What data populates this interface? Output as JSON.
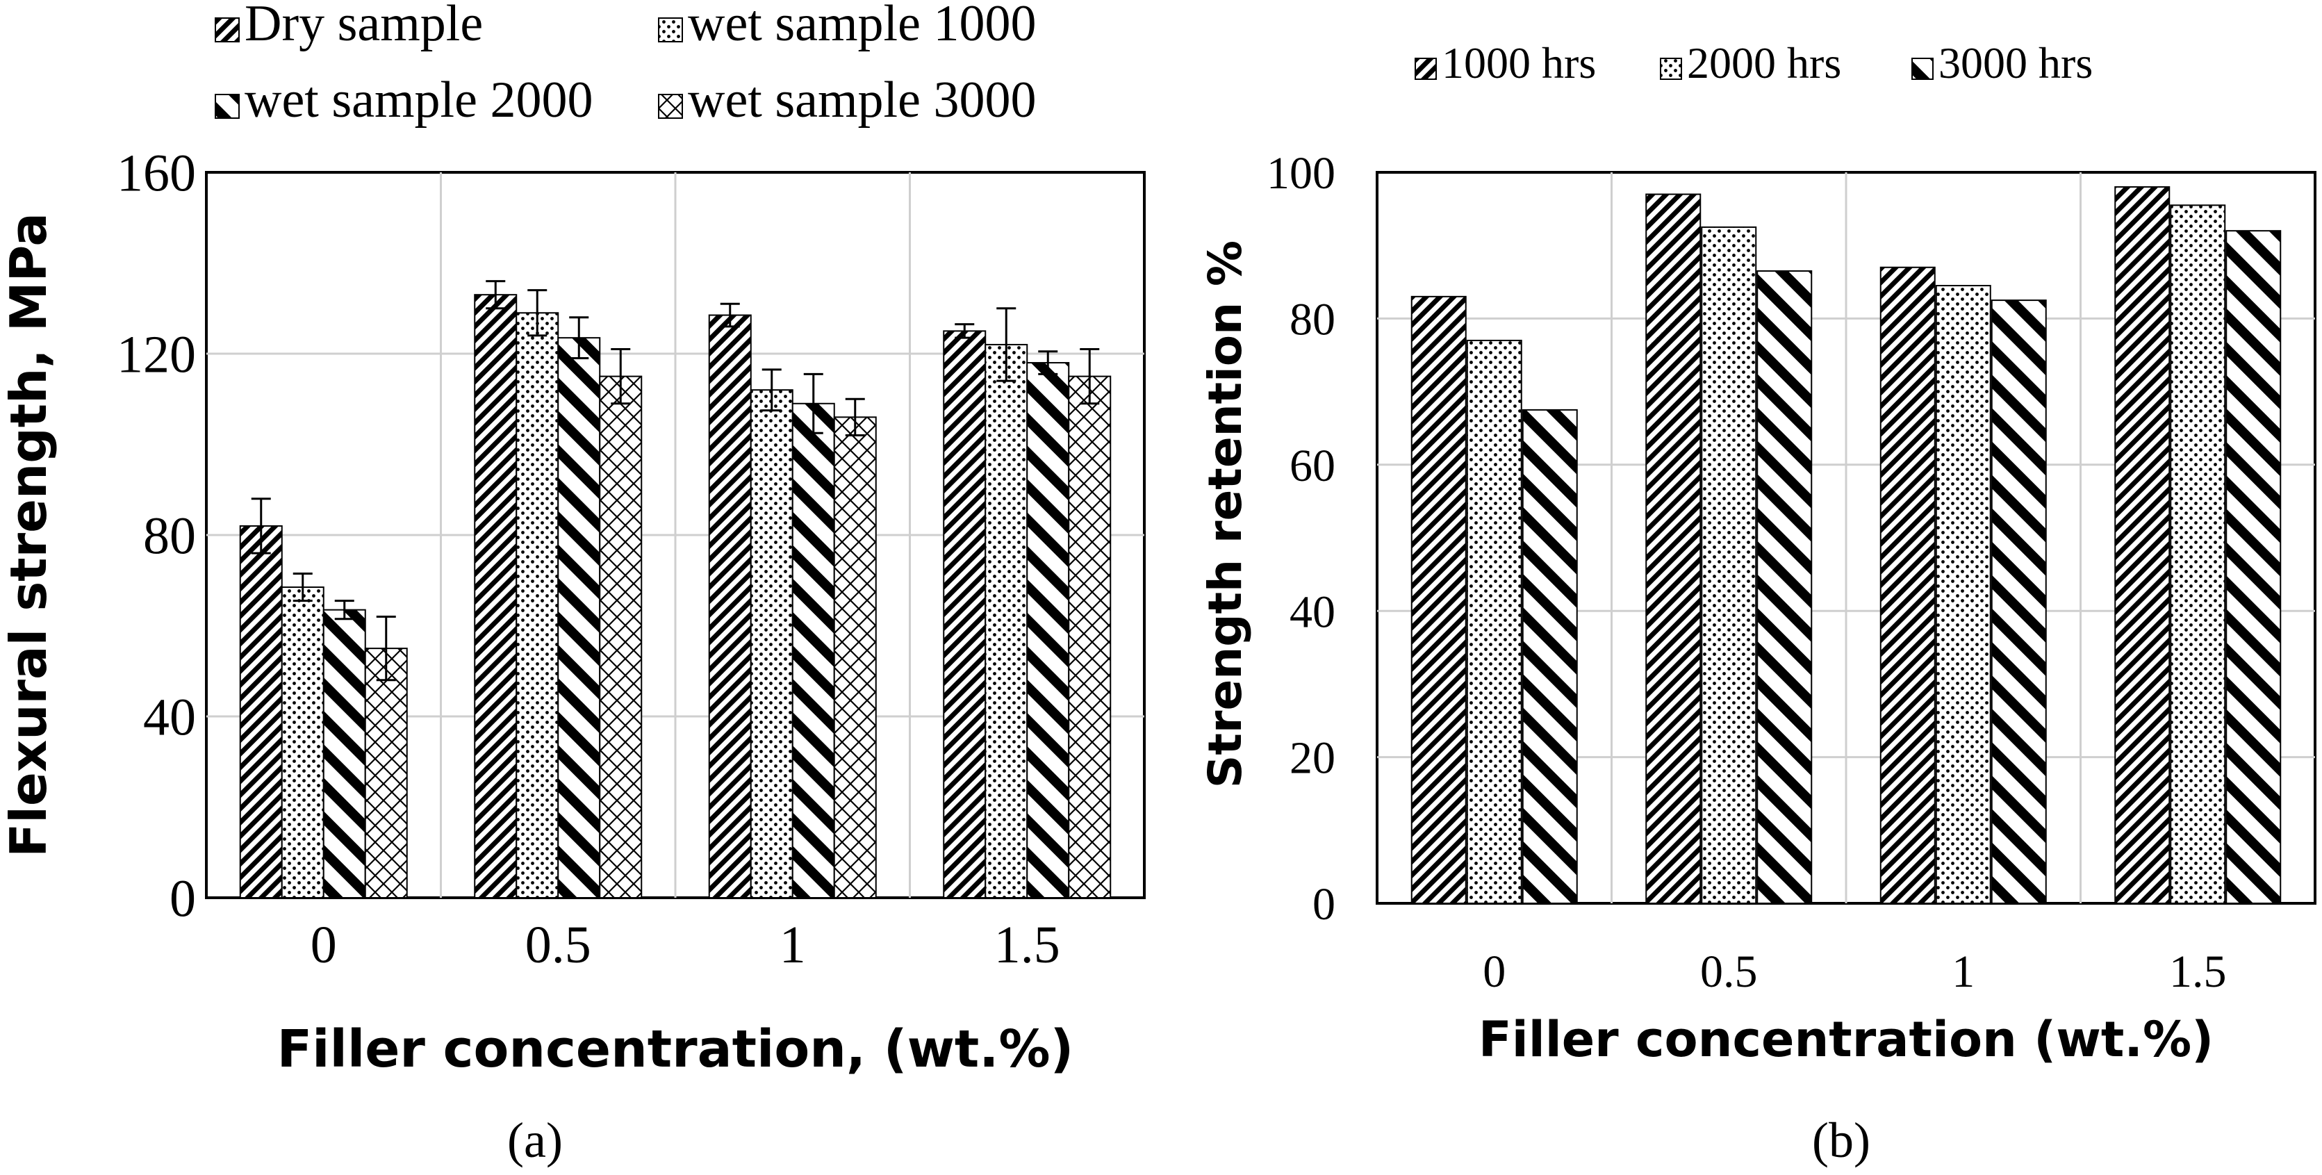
{
  "chart_data": [
    {
      "panel_label": "(a)",
      "type": "bar",
      "xlabel": "Filler concentration, (wt.%)",
      "ylabel": "Flexural strength, MPa",
      "ylim": [
        0,
        160
      ],
      "yticks": [
        0,
        40,
        80,
        120,
        160
      ],
      "categories": [
        "0",
        "0.5",
        "1",
        "1.5"
      ],
      "grid": true,
      "legend_position": "top",
      "error_bars": true,
      "series": [
        {
          "name": "Dry sample",
          "pattern": "dense-diagonal",
          "values": [
            82,
            133,
            128.5,
            125
          ],
          "errors": [
            6,
            3,
            2.5,
            1.5
          ]
        },
        {
          "name": "wet sample 1000",
          "pattern": "dots",
          "values": [
            68.5,
            129,
            112,
            122
          ],
          "errors": [
            3,
            5,
            4.5,
            8
          ]
        },
        {
          "name": "wet sample 2000",
          "pattern": "thick-diagonal",
          "values": [
            63.5,
            123.5,
            109,
            118
          ],
          "errors": [
            2,
            4.5,
            6.5,
            2.5
          ]
        },
        {
          "name": "wet sample 3000",
          "pattern": "crosshatch",
          "values": [
            55,
            115,
            106,
            115
          ],
          "errors": [
            7,
            6,
            4,
            6
          ]
        }
      ]
    },
    {
      "panel_label": "(b)",
      "type": "bar",
      "xlabel": "Filler concentration (wt.%)",
      "ylabel": "Strength retention %",
      "ylim": [
        0,
        100
      ],
      "yticks": [
        0,
        20,
        40,
        60,
        80,
        100
      ],
      "categories": [
        "0",
        "0.5",
        "1",
        "1.5"
      ],
      "grid": true,
      "legend_position": "top",
      "error_bars": false,
      "series": [
        {
          "name": "1000 hrs",
          "pattern": "dense-diagonal",
          "values": [
            83,
            97,
            87,
            98
          ]
        },
        {
          "name": "2000 hrs",
          "pattern": "dots",
          "values": [
            77,
            92.5,
            84.5,
            95.5
          ]
        },
        {
          "name": "3000 hrs",
          "pattern": "thick-diagonal",
          "values": [
            67.5,
            86.5,
            82.5,
            92
          ]
        }
      ]
    }
  ]
}
